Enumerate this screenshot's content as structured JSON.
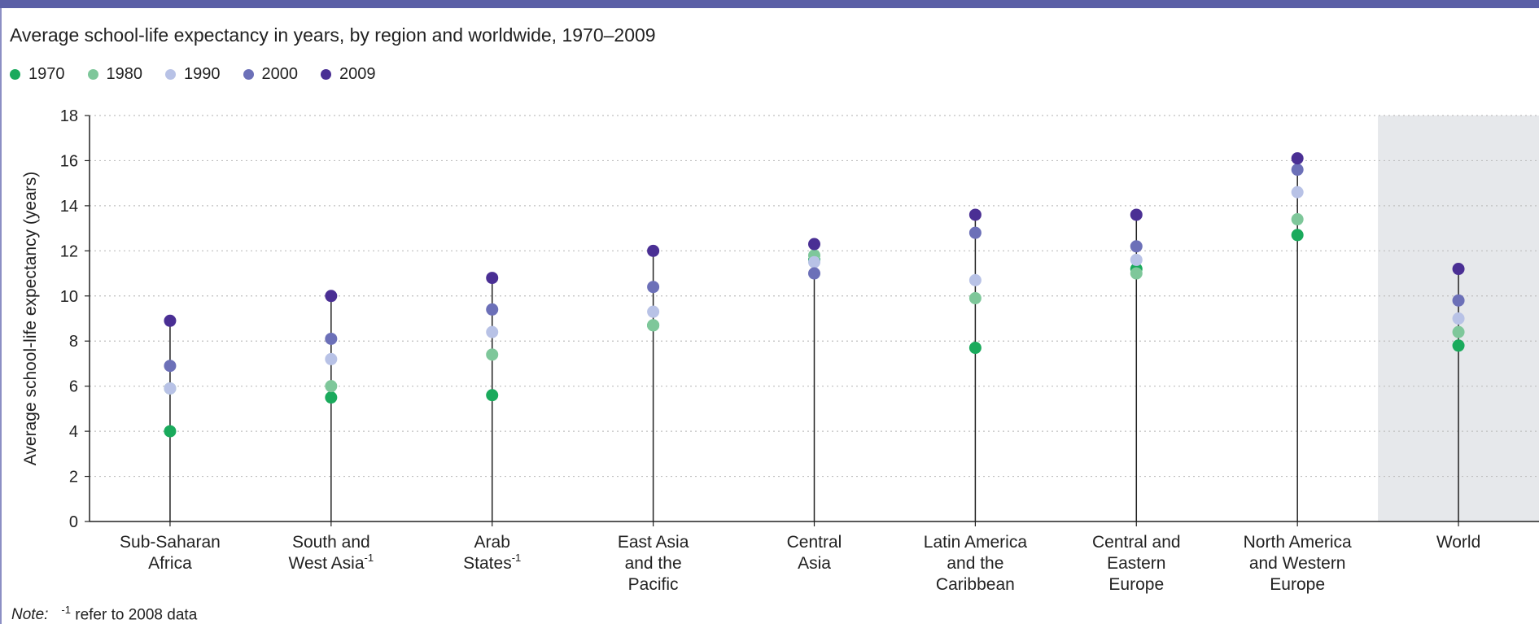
{
  "chart_data": {
    "type": "scatter",
    "subtitle": "Average school-life expectancy in years, by region and worldwide, 1970–2009",
    "ylabel": "Average school-life expectancy (years)",
    "ylim": [
      0,
      18
    ],
    "yticks": [
      0,
      2,
      4,
      6,
      8,
      10,
      12,
      14,
      16,
      18
    ],
    "grid": "horizontal-dotted",
    "legend_position": "top-left",
    "categories": [
      {
        "lines": [
          "Sub-Saharan",
          "Africa"
        ],
        "sup": ""
      },
      {
        "lines": [
          "South and",
          "West Asia"
        ],
        "sup": "-1"
      },
      {
        "lines": [
          "Arab",
          "States"
        ],
        "sup": "-1"
      },
      {
        "lines": [
          "East Asia",
          "and the",
          "Pacific"
        ],
        "sup": ""
      },
      {
        "lines": [
          "Central",
          "Asia"
        ],
        "sup": ""
      },
      {
        "lines": [
          "Latin America",
          "and the",
          "Caribbean"
        ],
        "sup": ""
      },
      {
        "lines": [
          "Central and",
          "Eastern",
          "Europe"
        ],
        "sup": ""
      },
      {
        "lines": [
          "North America",
          "and Western",
          "Europe"
        ],
        "sup": ""
      },
      {
        "lines": [
          "World"
        ],
        "sup": "",
        "highlight": true
      }
    ],
    "series": [
      {
        "name": "1970",
        "color": "#1aaa5c",
        "values": [
          4.0,
          5.5,
          5.6,
          8.7,
          11.6,
          7.7,
          11.2,
          12.7,
          7.8
        ]
      },
      {
        "name": "1980",
        "color": "#7ec79a",
        "values": [
          5.9,
          6.0,
          7.4,
          8.7,
          11.8,
          9.9,
          11.0,
          13.4,
          8.4
        ]
      },
      {
        "name": "1990",
        "color": "#b8c2e6",
        "values": [
          5.9,
          7.2,
          8.4,
          9.3,
          11.5,
          10.7,
          11.6,
          14.6,
          9.0
        ]
      },
      {
        "name": "2000",
        "color": "#6c70b8",
        "values": [
          6.9,
          8.1,
          9.4,
          10.4,
          11.0,
          12.8,
          12.2,
          15.6,
          9.8
        ]
      },
      {
        "name": "2009",
        "color": "#4a2f94",
        "values": [
          8.9,
          10.0,
          10.8,
          12.0,
          12.3,
          13.6,
          13.6,
          16.1,
          11.2
        ]
      }
    ]
  },
  "note": {
    "label": "Note:",
    "sup": "-1",
    "text": " refer to 2008 data"
  }
}
